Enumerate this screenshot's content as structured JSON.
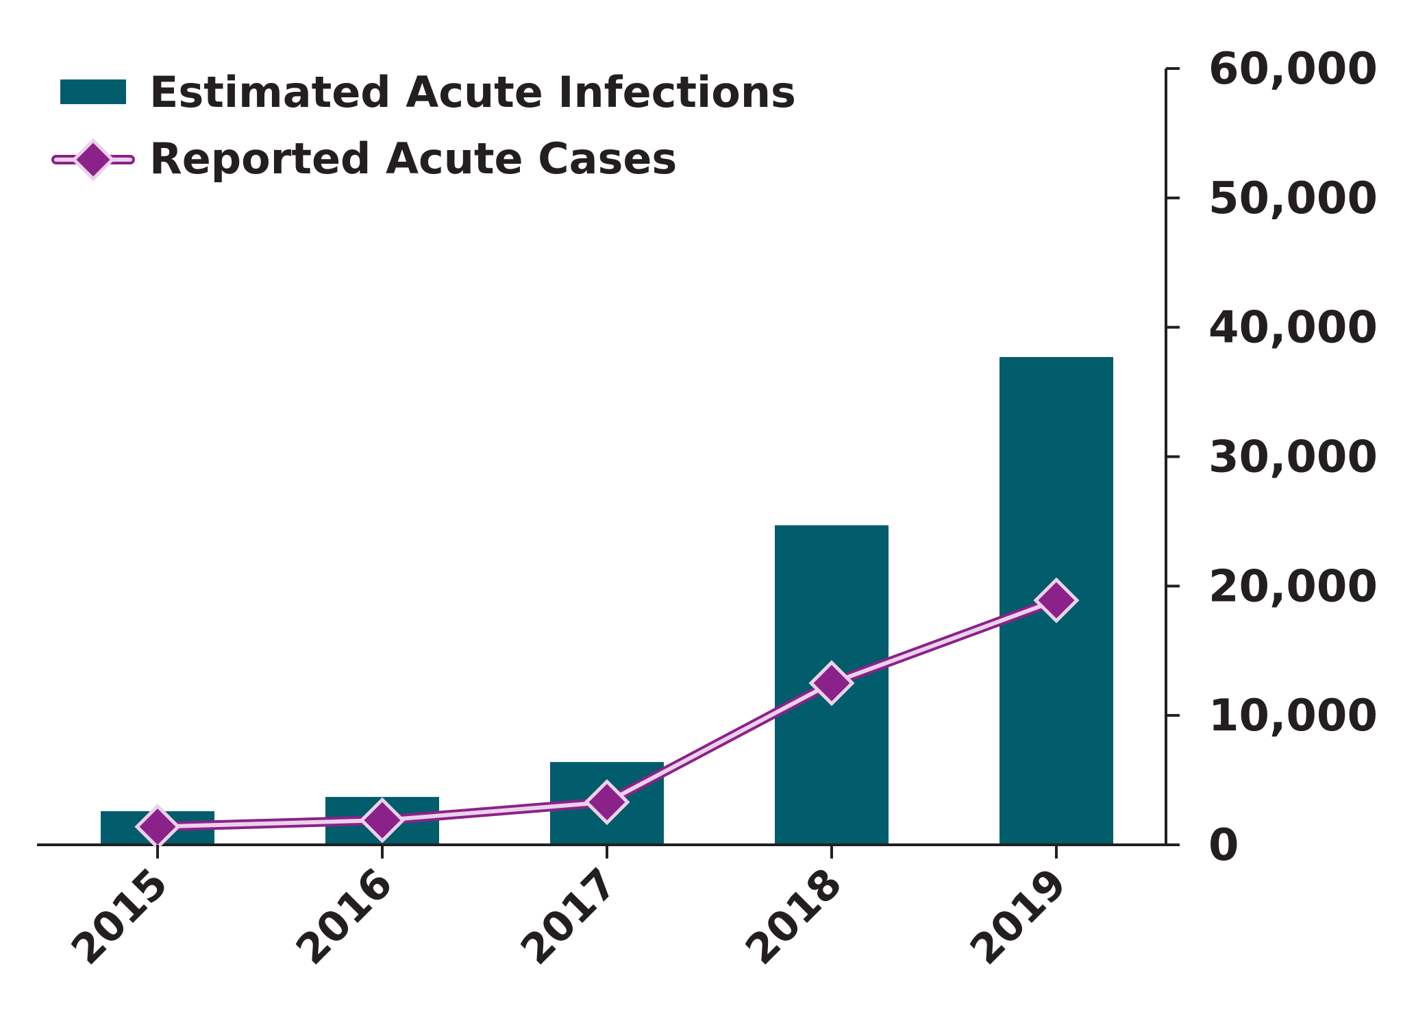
{
  "colors": {
    "bar": "#015c6b",
    "line": "#8b2289",
    "line_inner": "#ead2ea",
    "marker_fill": "#8b2289",
    "marker_stroke": "#ead2ea",
    "axis": "#231f20",
    "text": "#231f20"
  },
  "chart_data": {
    "type": "bar",
    "title": "",
    "xlabel": "",
    "ylabel": "",
    "categories": [
      "2015",
      "2016",
      "2017",
      "2018",
      "2019"
    ],
    "ylim": [
      0,
      60000
    ],
    "yticks": [
      0,
      10000,
      20000,
      30000,
      40000,
      50000,
      60000
    ],
    "ytick_labels": [
      "0",
      "10,000",
      "20,000",
      "30,000",
      "40,000",
      "50,000",
      "60,000"
    ],
    "y_axis_side": "right",
    "legend_position": "top-left",
    "series": [
      {
        "name": "Estimated Acute Infections",
        "type": "bar",
        "values": [
          2600,
          3700,
          6400,
          24700,
          37700
        ]
      },
      {
        "name": "Reported Acute Cases",
        "type": "line",
        "marker": "diamond",
        "values": [
          1400,
          1900,
          3300,
          12500,
          18900
        ]
      }
    ]
  }
}
